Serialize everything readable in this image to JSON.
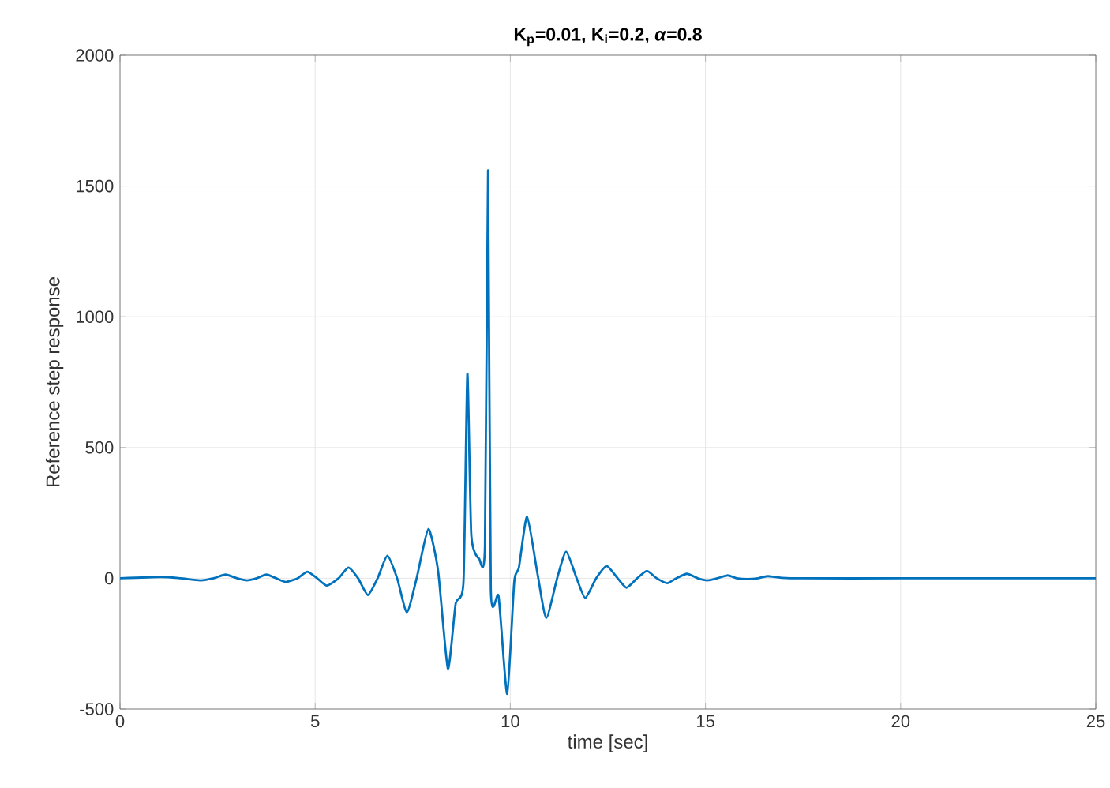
{
  "chart_data": {
    "type": "line",
    "title": "**K$_{p}$=0.01, K$_{i}$=0.2, *α*=0.8**",
    "xlabel": "time [sec]",
    "ylabel": "Reference step response",
    "xlim": [
      0,
      25
    ],
    "ylim": [
      -500,
      2000
    ],
    "xticks": [
      0,
      5,
      10,
      15,
      20,
      25
    ],
    "yticks": [
      -500,
      0,
      500,
      1000,
      1500,
      2000
    ],
    "grid": true,
    "series": [
      {
        "color": "#0072bd",
        "line_style": "solid",
        "x": [
          0,
          1.05,
          1.55,
          2.05,
          2.4,
          2.7,
          3.0,
          3.25,
          3.5,
          3.75,
          4.0,
          4.25,
          4.55,
          4.8,
          5.05,
          5.3,
          5.6,
          5.85,
          6.1,
          6.35,
          6.6,
          6.85,
          7.1,
          7.35,
          7.6,
          7.9,
          8.15,
          8.4,
          8.6,
          8.8,
          8.9,
          9.0,
          9.2,
          9.35,
          9.43,
          9.5,
          9.7,
          9.92,
          10.1,
          10.22,
          10.43,
          10.7,
          10.92,
          11.2,
          11.43,
          11.7,
          11.92,
          12.2,
          12.47,
          12.75,
          12.98,
          13.25,
          13.5,
          13.75,
          14.02,
          14.25,
          14.53,
          14.8,
          15.05,
          15.3,
          15.57,
          15.8,
          16.08,
          16.35,
          16.6,
          17.18,
          20,
          25
        ],
        "values": [
          0,
          5,
          0,
          -8,
          0,
          14,
          0,
          -8,
          0,
          14,
          0,
          -14,
          0,
          25,
          0,
          -28,
          0,
          41,
          0,
          -64,
          0,
          86,
          0,
          -130,
          0,
          188,
          28,
          -345,
          -97,
          -14,
          782,
          166,
          75,
          124,
          1560,
          -41,
          -69,
          -442,
          -14,
          41,
          235,
          14,
          -152,
          0,
          102,
          0,
          -75,
          0,
          47,
          0,
          -36,
          0,
          28,
          0,
          -19,
          0,
          17,
          0,
          -8,
          0,
          11,
          0,
          -3,
          0,
          8,
          0,
          0,
          0
        ]
      }
    ]
  }
}
